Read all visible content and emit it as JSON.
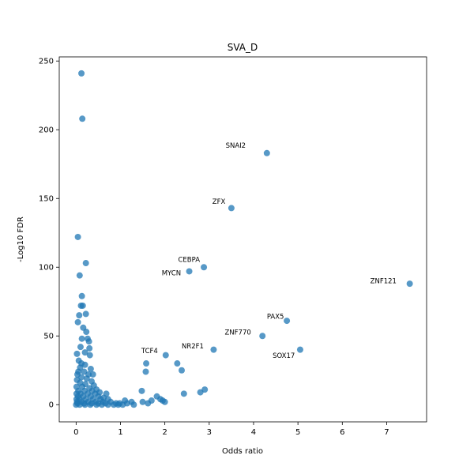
{
  "chart_data": {
    "type": "scatter",
    "title": "SVA_D",
    "xlabel": "Odds ratio",
    "ylabel": "-Log10 FDR",
    "xlim": [
      -0.38,
      7.9
    ],
    "ylim": [
      -12.5,
      253
    ],
    "xticks": [
      "0",
      "1",
      "2",
      "3",
      "4",
      "5",
      "6",
      "7"
    ],
    "yticks": [
      "0",
      "50",
      "100",
      "150",
      "200",
      "250"
    ],
    "grid": false,
    "marker_color": "#1f77b4",
    "points": [
      {
        "x": 0.12,
        "y": 241
      },
      {
        "x": 0.14,
        "y": 208
      },
      {
        "x": 0.04,
        "y": 122
      },
      {
        "x": 0.22,
        "y": 103
      },
      {
        "x": 0.08,
        "y": 94
      },
      {
        "x": 0.13,
        "y": 79
      },
      {
        "x": 0.11,
        "y": 72
      },
      {
        "x": 0.15,
        "y": 72
      },
      {
        "x": 0.07,
        "y": 65
      },
      {
        "x": 0.22,
        "y": 66
      },
      {
        "x": 0.04,
        "y": 60
      },
      {
        "x": 0.16,
        "y": 56
      },
      {
        "x": 0.23,
        "y": 53
      },
      {
        "x": 0.13,
        "y": 48
      },
      {
        "x": 0.26,
        "y": 48
      },
      {
        "x": 0.29,
        "y": 46
      },
      {
        "x": 0.1,
        "y": 42
      },
      {
        "x": 0.3,
        "y": 41
      },
      {
        "x": 0.02,
        "y": 37
      },
      {
        "x": 0.2,
        "y": 38
      },
      {
        "x": 0.31,
        "y": 36
      },
      {
        "x": 0.06,
        "y": 32
      },
      {
        "x": 0.12,
        "y": 30
      },
      {
        "x": 0.2,
        "y": 29
      },
      {
        "x": 0.09,
        "y": 27
      },
      {
        "x": 0.33,
        "y": 26
      },
      {
        "x": 0.05,
        "y": 24
      },
      {
        "x": 0.18,
        "y": 24
      },
      {
        "x": 0.03,
        "y": 22
      },
      {
        "x": 0.28,
        "y": 22
      },
      {
        "x": 0.38,
        "y": 22
      },
      {
        "x": 0.12,
        "y": 20
      },
      {
        "x": 0.24,
        "y": 19
      },
      {
        "x": 0.02,
        "y": 18
      },
      {
        "x": 0.35,
        "y": 17
      },
      {
        "x": 0.09,
        "y": 16
      },
      {
        "x": 0.21,
        "y": 15
      },
      {
        "x": 0.4,
        "y": 14
      },
      {
        "x": 0.01,
        "y": 13
      },
      {
        "x": 0.14,
        "y": 13
      },
      {
        "x": 0.3,
        "y": 12
      },
      {
        "x": 0.46,
        "y": 11
      },
      {
        "x": 0.05,
        "y": 10
      },
      {
        "x": 0.19,
        "y": 10
      },
      {
        "x": 0.36,
        "y": 10
      },
      {
        "x": 0.53,
        "y": 9
      },
      {
        "x": 0.01,
        "y": 8
      },
      {
        "x": 0.1,
        "y": 8
      },
      {
        "x": 0.26,
        "y": 8
      },
      {
        "x": 0.43,
        "y": 8
      },
      {
        "x": 0.68,
        "y": 8
      },
      {
        "x": 0.04,
        "y": 6
      },
      {
        "x": 0.16,
        "y": 6
      },
      {
        "x": 0.33,
        "y": 6
      },
      {
        "x": 0.5,
        "y": 6
      },
      {
        "x": 0.62,
        "y": 5
      },
      {
        "x": 0.01,
        "y": 4
      },
      {
        "x": 0.08,
        "y": 4
      },
      {
        "x": 0.22,
        "y": 4
      },
      {
        "x": 0.38,
        "y": 4
      },
      {
        "x": 0.55,
        "y": 4
      },
      {
        "x": 0.72,
        "y": 4
      },
      {
        "x": 0.02,
        "y": 2
      },
      {
        "x": 0.12,
        "y": 2
      },
      {
        "x": 0.27,
        "y": 2
      },
      {
        "x": 0.44,
        "y": 2
      },
      {
        "x": 0.6,
        "y": 2
      },
      {
        "x": 0.78,
        "y": 2
      },
      {
        "x": 0.9,
        "y": 1
      },
      {
        "x": 0.03,
        "y": 1
      },
      {
        "x": 0.18,
        "y": 1
      },
      {
        "x": 0.35,
        "y": 1
      },
      {
        "x": 0.5,
        "y": 1
      },
      {
        "x": 0.66,
        "y": 1
      },
      {
        "x": 0.0,
        "y": 0
      },
      {
        "x": 0.08,
        "y": 0
      },
      {
        "x": 0.2,
        "y": 0
      },
      {
        "x": 0.32,
        "y": 0
      },
      {
        "x": 0.46,
        "y": 0
      },
      {
        "x": 0.58,
        "y": 0
      },
      {
        "x": 0.72,
        "y": 0
      },
      {
        "x": 0.85,
        "y": 0
      },
      {
        "x": 0.98,
        "y": 1
      },
      {
        "x": 1.05,
        "y": 0
      },
      {
        "x": 1.15,
        "y": 1
      },
      {
        "x": 1.25,
        "y": 2
      },
      {
        "x": 1.1,
        "y": 3
      },
      {
        "x": 0.95,
        "y": 0
      },
      {
        "x": 1.3,
        "y": 0
      },
      {
        "x": 1.48,
        "y": 10
      },
      {
        "x": 1.58,
        "y": 30
      },
      {
        "x": 1.57,
        "y": 24
      },
      {
        "x": 1.5,
        "y": 2
      },
      {
        "x": 1.62,
        "y": 1
      },
      {
        "x": 1.7,
        "y": 3
      },
      {
        "x": 1.82,
        "y": 6
      },
      {
        "x": 1.9,
        "y": 4
      },
      {
        "x": 1.95,
        "y": 3
      },
      {
        "x": 2.0,
        "y": 2
      },
      {
        "x": 2.02,
        "y": 36
      },
      {
        "x": 2.28,
        "y": 30
      },
      {
        "x": 2.38,
        "y": 25
      },
      {
        "x": 2.43,
        "y": 8
      },
      {
        "x": 2.8,
        "y": 9
      },
      {
        "x": 2.9,
        "y": 11
      },
      {
        "x": 2.55,
        "y": 97
      },
      {
        "x": 2.88,
        "y": 100
      },
      {
        "x": 3.1,
        "y": 40
      },
      {
        "x": 3.5,
        "y": 143
      },
      {
        "x": 4.2,
        "y": 50
      },
      {
        "x": 4.3,
        "y": 183
      },
      {
        "x": 4.75,
        "y": 61
      },
      {
        "x": 5.05,
        "y": 40
      },
      {
        "x": 7.52,
        "y": 88
      }
    ],
    "annotations": [
      {
        "text": "SNAI2",
        "x": 3.37,
        "y": 187,
        "ha": "start"
      },
      {
        "text": "ZFX",
        "x": 3.07,
        "y": 146,
        "ha": "start"
      },
      {
        "text": "CEBPA",
        "x": 2.3,
        "y": 104,
        "ha": "start"
      },
      {
        "text": "MYCN",
        "x": 1.93,
        "y": 94,
        "ha": "start"
      },
      {
        "text": "ZNF121",
        "x": 6.63,
        "y": 88.5,
        "ha": "start"
      },
      {
        "text": "PAX5",
        "x": 4.3,
        "y": 62.5,
        "ha": "start"
      },
      {
        "text": "ZNF770",
        "x": 3.35,
        "y": 51,
        "ha": "start"
      },
      {
        "text": "NR2F1",
        "x": 2.38,
        "y": 41,
        "ha": "start"
      },
      {
        "text": "TCF4",
        "x": 1.47,
        "y": 37.5,
        "ha": "start"
      },
      {
        "text": "SOX17",
        "x": 4.43,
        "y": 34,
        "ha": "start"
      }
    ]
  }
}
